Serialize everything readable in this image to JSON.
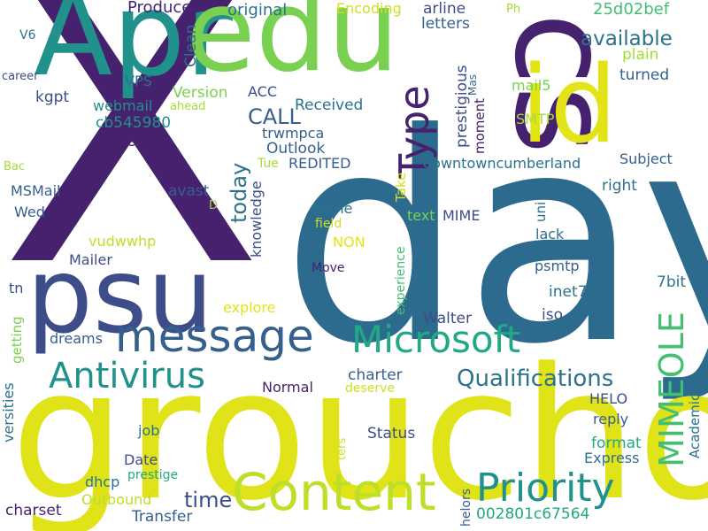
{
  "palette": {
    "dark_purple": "#46226e",
    "purple": "#472f7d",
    "indigo": "#3d4d8a",
    "blue": "#355f8d",
    "steel_blue": "#2c718e",
    "teal": "#21918c",
    "green_teal": "#22a884",
    "green": "#44bf70",
    "light_green": "#7ad151",
    "lime": "#a5db36",
    "yellow_green": "#cde11d",
    "yellow": "#e3e418"
  },
  "words": [
    {
      "text": "X",
      "color": "#46226e"
    },
    {
      "text": "day",
      "color": "#2c6a8e"
    },
    {
      "text": "groucho",
      "color": "#dfe318"
    },
    {
      "text": "Apr",
      "color": "#21918c"
    },
    {
      "text": "edu",
      "color": "#7ad151"
    },
    {
      "text": "cs",
      "color": "#46226e"
    },
    {
      "text": "id",
      "color": "#e3e418"
    },
    {
      "text": "psu",
      "color": "#3d4d8a"
    },
    {
      "text": "message",
      "color": "#355f8d"
    },
    {
      "text": "Content",
      "color": "#bddf26"
    },
    {
      "text": "Priority",
      "color": "#21918c"
    },
    {
      "text": "Microsoft",
      "color": "#22a884"
    },
    {
      "text": "Type",
      "color": "#46226e"
    },
    {
      "text": "Antivirus",
      "color": "#21918c"
    },
    {
      "text": "MIMEOLE",
      "color": "#44bf70"
    },
    {
      "text": "Qualifications",
      "color": "#2c718e"
    },
    {
      "text": "CALL",
      "color": "#355f8d"
    },
    {
      "text": "available",
      "color": "#2c718e"
    },
    {
      "text": "today",
      "color": "#2c718e"
    },
    {
      "text": "time",
      "color": "#3d4d8a"
    },
    {
      "text": "Produced",
      "color": "#46226e"
    },
    {
      "text": "original",
      "color": "#2c718e"
    },
    {
      "text": "Encoding",
      "color": "#cde11d"
    },
    {
      "text": "arline",
      "color": "#3d4d8a"
    },
    {
      "text": "Ph",
      "color": "#a5db36"
    },
    {
      "text": "25d02bef",
      "color": "#44bf70"
    },
    {
      "text": "V6",
      "color": "#2c718e"
    },
    {
      "text": "Clean",
      "color": "#2c718e"
    },
    {
      "text": "letters",
      "color": "#355f8d"
    },
    {
      "text": "plain",
      "color": "#a5db36"
    },
    {
      "text": "career",
      "color": "#3d4d8a"
    },
    {
      "text": "VPS",
      "color": "#2c718e"
    },
    {
      "text": "Mas",
      "color": "#355f8d"
    },
    {
      "text": "turned",
      "color": "#355f8d"
    },
    {
      "text": "kgpt",
      "color": "#3d4d8a"
    },
    {
      "text": "Version",
      "color": "#7ad151"
    },
    {
      "text": "ACC",
      "color": "#3d4d8a"
    },
    {
      "text": "prestigious",
      "color": "#3d4d8a"
    },
    {
      "text": "mail5",
      "color": "#7ad151"
    },
    {
      "text": "webmail",
      "color": "#21918c"
    },
    {
      "text": "ahead",
      "color": "#a5db36"
    },
    {
      "text": "Received",
      "color": "#2c718e"
    },
    {
      "text": "cb545980",
      "color": "#21918c"
    },
    {
      "text": "trwmpca",
      "color": "#355f8d"
    },
    {
      "text": "moment",
      "color": "#46226e"
    },
    {
      "text": "SMTP",
      "color": "#a5db36"
    },
    {
      "text": "flowed",
      "color": "#46226e"
    },
    {
      "text": "Outlook",
      "color": "#355f8d"
    },
    {
      "text": "Tue",
      "color": "#a5db36"
    },
    {
      "text": "REDITED",
      "color": "#355f8d"
    },
    {
      "text": "downtowncumberland",
      "color": "#2c718e"
    },
    {
      "text": "Subject",
      "color": "#355f8d"
    },
    {
      "text": "Bac",
      "color": "#a5db36"
    },
    {
      "text": "MSMail",
      "color": "#355f8d"
    },
    {
      "text": "avast",
      "color": "#355f8d"
    },
    {
      "text": "knowledge",
      "color": "#3d4d8a"
    },
    {
      "text": "Take",
      "color": "#cde11d"
    },
    {
      "text": "right",
      "color": "#2c718e"
    },
    {
      "text": "D",
      "color": "#a5db36"
    },
    {
      "text": "Wed",
      "color": "#355f8d"
    },
    {
      "text": "name",
      "color": "#2c718e"
    },
    {
      "text": "text",
      "color": "#7ad151"
    },
    {
      "text": "MIME",
      "color": "#3d4d8a"
    },
    {
      "text": "uni",
      "color": "#2c718e"
    },
    {
      "text": "field",
      "color": "#cde11d"
    },
    {
      "text": "experience",
      "color": "#44bf70"
    },
    {
      "text": "NON",
      "color": "#e3e418"
    },
    {
      "text": "vudwwhp",
      "color": "#bddf26"
    },
    {
      "text": "lack",
      "color": "#2c718e"
    },
    {
      "text": "Mailer",
      "color": "#3d4d8a"
    },
    {
      "text": "psmtp",
      "color": "#355f8d"
    },
    {
      "text": "Move",
      "color": "#46226e"
    },
    {
      "text": "7bit",
      "color": "#2c718e"
    },
    {
      "text": "tn",
      "color": "#3d4d8a"
    },
    {
      "text": "inet7",
      "color": "#2c718e"
    },
    {
      "text": "explore",
      "color": "#e3e418"
    },
    {
      "text": "Walter",
      "color": "#3d4d8a"
    },
    {
      "text": "iso",
      "color": "#3d4d8a"
    },
    {
      "text": "getting",
      "color": "#7ad151"
    },
    {
      "text": "dreams",
      "color": "#355f8d"
    },
    {
      "text": "versities",
      "color": "#2c718e"
    },
    {
      "text": "charter",
      "color": "#355f8d"
    },
    {
      "text": "Normal",
      "color": "#46226e"
    },
    {
      "text": "deserve",
      "color": "#cde11d"
    },
    {
      "text": "HELO",
      "color": "#3d4d8a"
    },
    {
      "text": "Academic",
      "color": "#2c718e"
    },
    {
      "text": "reply",
      "color": "#355f8d"
    },
    {
      "text": "job",
      "color": "#2c718e"
    },
    {
      "text": "Status",
      "color": "#3d4d8a"
    },
    {
      "text": "ters",
      "color": "#cde11d"
    },
    {
      "text": "format",
      "color": "#22a884"
    },
    {
      "text": "Date",
      "color": "#3d4d8a"
    },
    {
      "text": "Express",
      "color": "#2c718e"
    },
    {
      "text": "dhcp",
      "color": "#2c718e"
    },
    {
      "text": "prestige",
      "color": "#22a884"
    },
    {
      "text": "charset",
      "color": "#46226e"
    },
    {
      "text": "Outbound",
      "color": "#bddf26"
    },
    {
      "text": "Transfer",
      "color": "#355f8d"
    },
    {
      "text": "helors",
      "color": "#355f8d"
    },
    {
      "text": "002801c67564",
      "color": "#22a884"
    }
  ]
}
